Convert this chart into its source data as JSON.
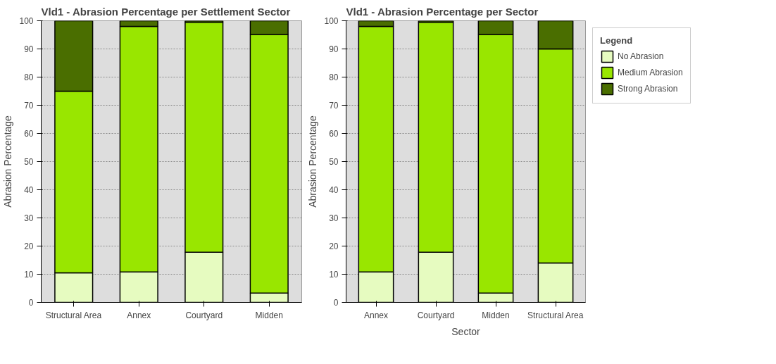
{
  "chart_data": [
    {
      "type": "bar",
      "stacked": true,
      "title": "Vld1 - Abrasion Percentage per Settlement Sector",
      "ylabel": "Abrasion Percentage",
      "categories": [
        "Structural Area",
        "Annex",
        "Courtyard",
        "Midden"
      ],
      "ylim": [
        0,
        100
      ],
      "yticks": [
        0,
        10,
        20,
        30,
        40,
        50,
        60,
        70,
        80,
        90,
        100
      ],
      "grid": "y",
      "series": [
        {
          "color": "#e6fbc0",
          "values": [
            10.5,
            10.8,
            17.8,
            3.3
          ]
        },
        {
          "color": "#99e600",
          "values": [
            64.5,
            87.2,
            81.7,
            91.9
          ]
        },
        {
          "color": "#4a6e00",
          "values": [
            25,
            2,
            0.5,
            4.8
          ]
        }
      ]
    },
    {
      "type": "bar",
      "stacked": true,
      "title": "Vld1 - Abrasion Percentage per Sector",
      "xlabel": "Sector",
      "ylabel": "Abrasion Percentage",
      "legend_title": "Legend",
      "categories": [
        "Annex",
        "Courtyard",
        "Midden",
        "Structural Area"
      ],
      "ylim": [
        0,
        100
      ],
      "yticks": [
        0,
        10,
        20,
        30,
        40,
        50,
        60,
        70,
        80,
        90,
        100
      ],
      "grid": "y",
      "legend": "right",
      "series": [
        {
          "name": "No Abrasion",
          "color": "#e6fbc0",
          "values": [
            10.8,
            17.8,
            3.3,
            14
          ]
        },
        {
          "name": "Medium Abrasion",
          "color": "#99e600",
          "values": [
            87.2,
            81.7,
            91.9,
            76
          ]
        },
        {
          "name": "Strong Abrasion",
          "color": "#4a6e00",
          "values": [
            2,
            0.5,
            4.8,
            10
          ]
        }
      ]
    }
  ]
}
